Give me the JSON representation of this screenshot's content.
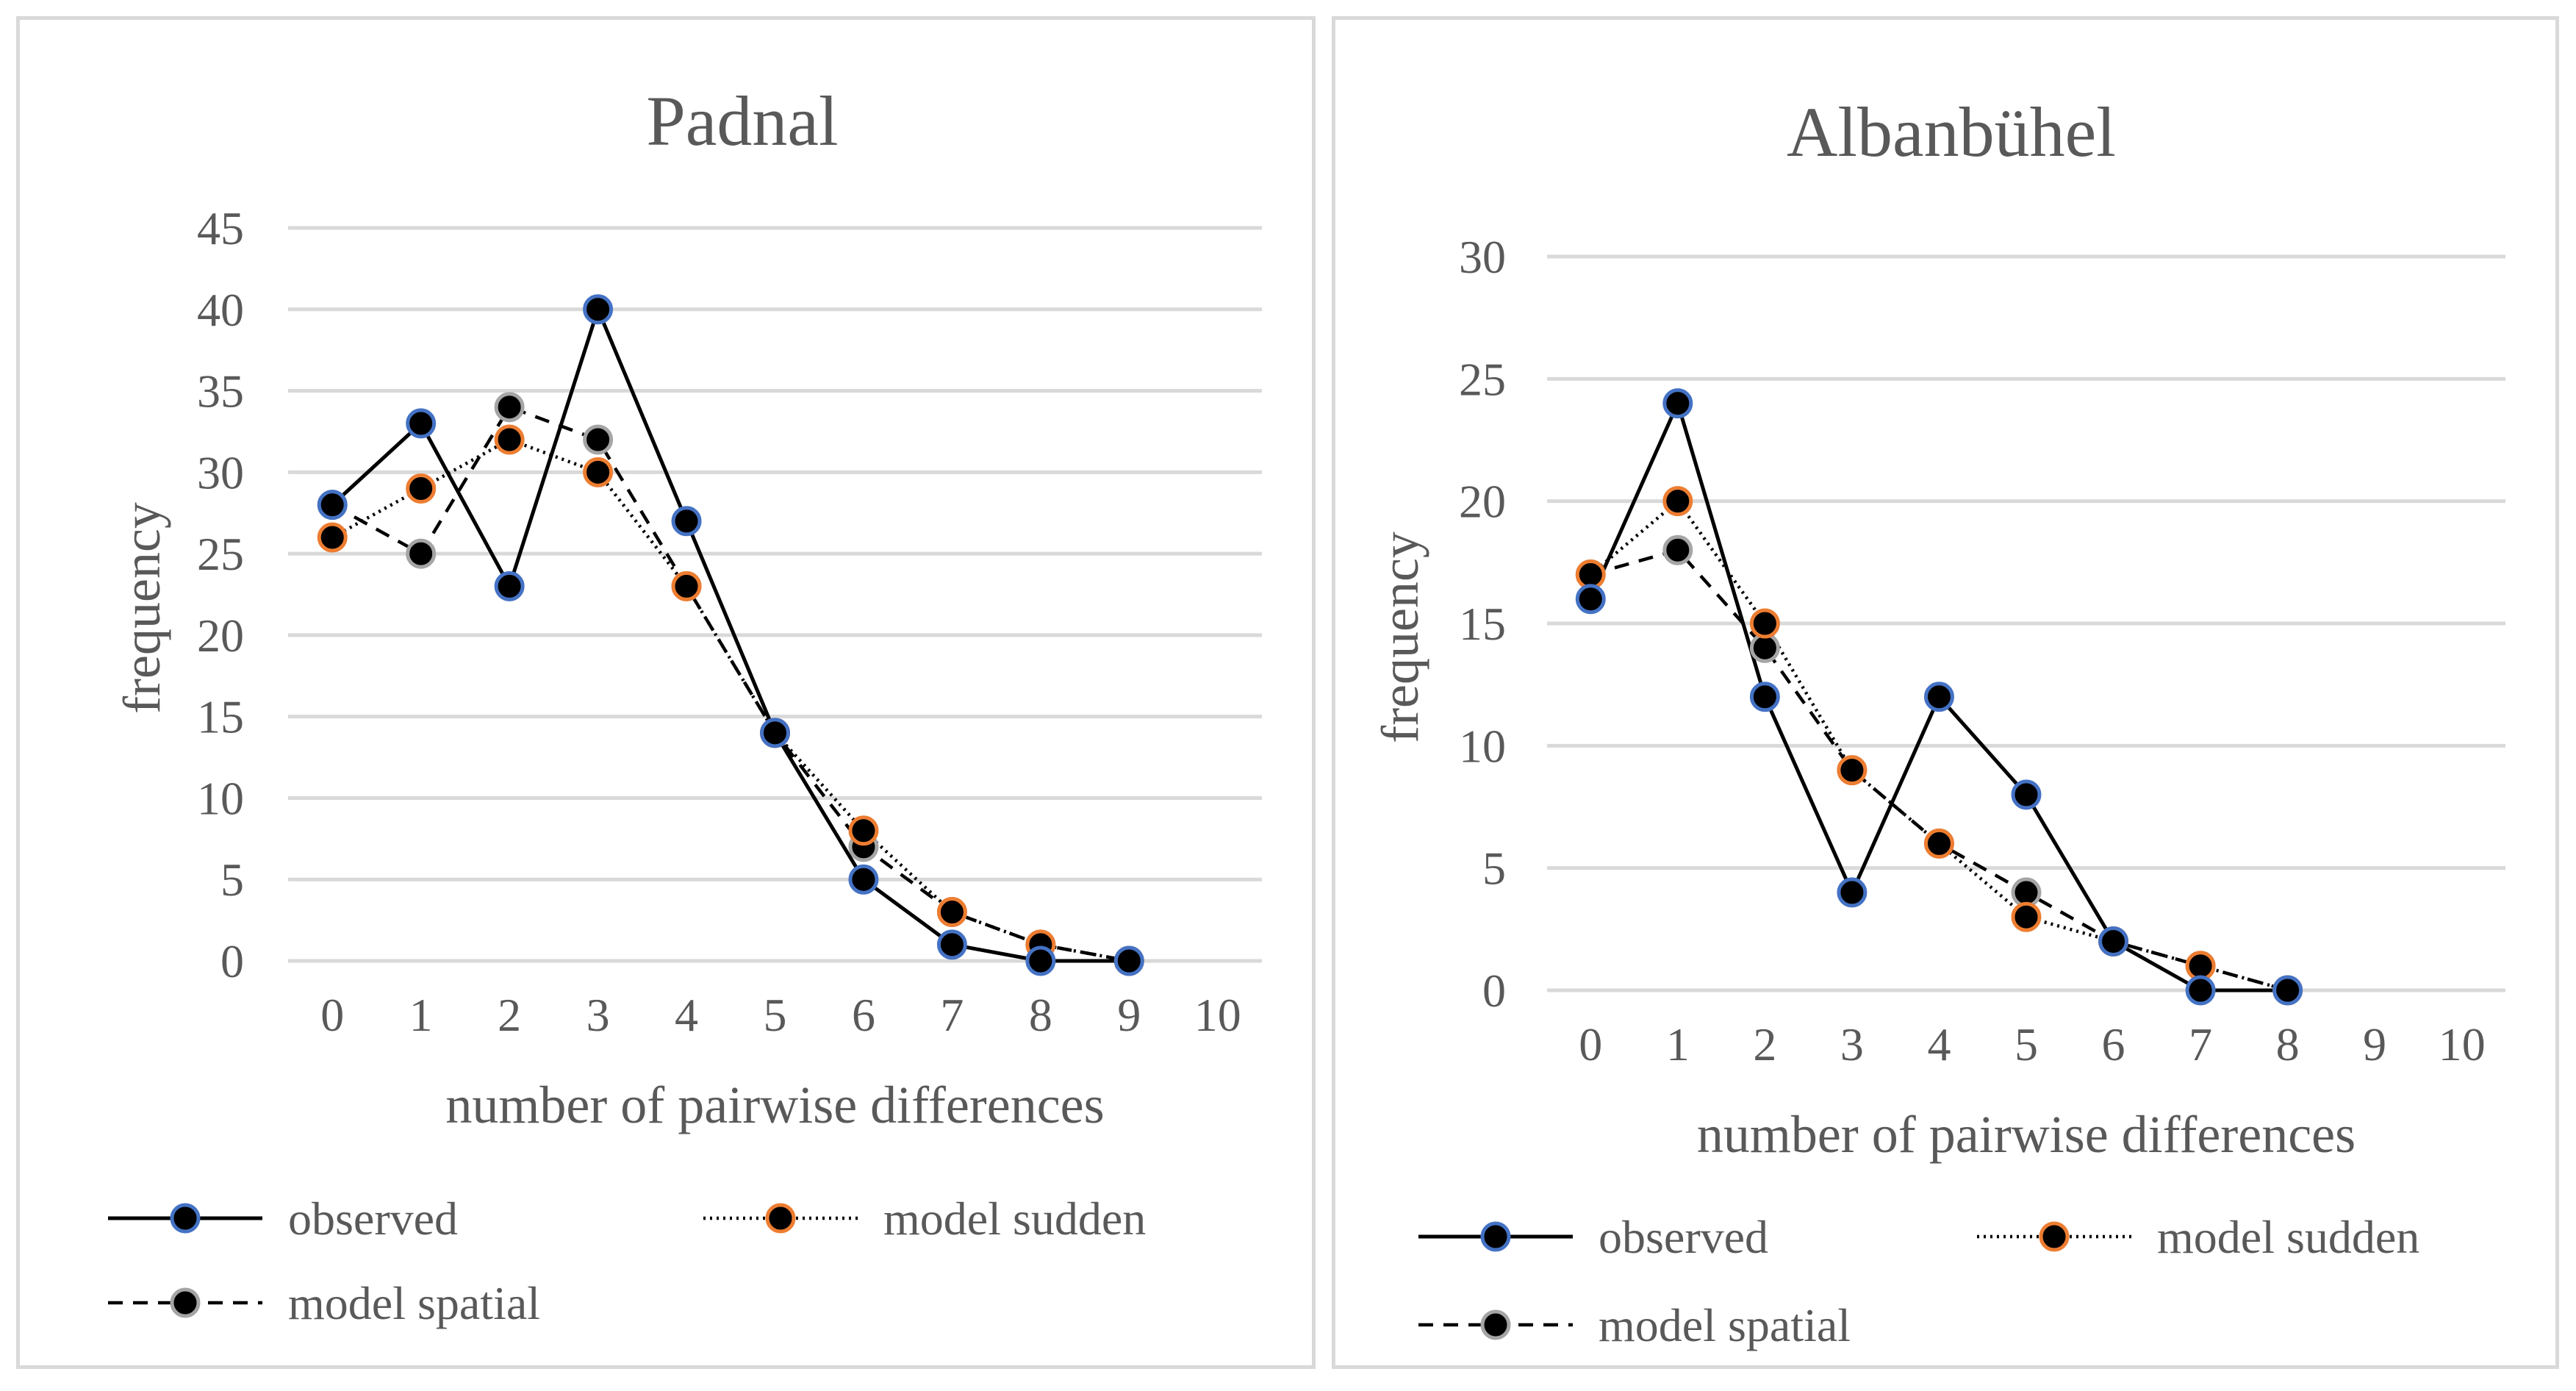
{
  "colors": {
    "grid": "#d9d9d9",
    "text": "#595959",
    "line": "#000000",
    "observed_marker_border": "#4472c4",
    "sudden_marker_border": "#ed7d31",
    "spatial_marker_border": "#a5a5a5"
  },
  "chart_data": [
    {
      "type": "line",
      "title": "Padnal",
      "xlabel": "number of pairwise differences",
      "ylabel": "frequency",
      "xlim": [
        0,
        10
      ],
      "ylim": [
        0,
        45
      ],
      "x_ticks": [
        "0",
        "1",
        "2",
        "3",
        "4",
        "5",
        "6",
        "7",
        "8",
        "9",
        "10"
      ],
      "y_ticks": [
        "0",
        "5",
        "10",
        "15",
        "20",
        "25",
        "30",
        "35",
        "40",
        "45"
      ],
      "series": [
        {
          "name": "observed",
          "x": [
            0,
            1,
            2,
            3,
            4,
            5,
            6,
            7,
            8,
            9
          ],
          "values": [
            28,
            33,
            23,
            40,
            27,
            14,
            5,
            1,
            0,
            0
          ]
        },
        {
          "name": "model sudden",
          "x": [
            0,
            1,
            2,
            3,
            4,
            5,
            6,
            7,
            8,
            9
          ],
          "values": [
            26,
            29,
            32,
            30,
            23,
            14,
            8,
            3,
            1,
            0
          ]
        },
        {
          "name": "model spatial",
          "x": [
            0,
            1,
            2,
            3,
            4,
            5,
            6,
            7,
            8,
            9
          ],
          "values": [
            28,
            25,
            34,
            32,
            23,
            14,
            7,
            3,
            1,
            0
          ]
        }
      ]
    },
    {
      "type": "line",
      "title": "Albanbühel",
      "xlabel": "number of pairwise differences",
      "ylabel": "frequency",
      "xlim": [
        0,
        10
      ],
      "ylim": [
        0,
        30
      ],
      "x_ticks": [
        "0",
        "1",
        "2",
        "3",
        "4",
        "5",
        "6",
        "7",
        "8",
        "9",
        "10"
      ],
      "y_ticks": [
        "0",
        "5",
        "10",
        "15",
        "20",
        "25",
        "30"
      ],
      "series": [
        {
          "name": "observed",
          "x": [
            0,
            1,
            2,
            3,
            4,
            5,
            6,
            7,
            8
          ],
          "values": [
            16,
            24,
            12,
            4,
            12,
            8,
            2,
            0,
            0
          ]
        },
        {
          "name": "model sudden",
          "x": [
            0,
            1,
            2,
            3,
            4,
            5,
            6,
            7,
            8
          ],
          "values": [
            17,
            20,
            15,
            9,
            6,
            3,
            2,
            1,
            0
          ]
        },
        {
          "name": "model spatial",
          "x": [
            0,
            1,
            2,
            3,
            4,
            5,
            6,
            7,
            8
          ],
          "values": [
            17,
            18,
            14,
            9,
            6,
            4,
            2,
            1,
            0
          ]
        }
      ]
    }
  ]
}
